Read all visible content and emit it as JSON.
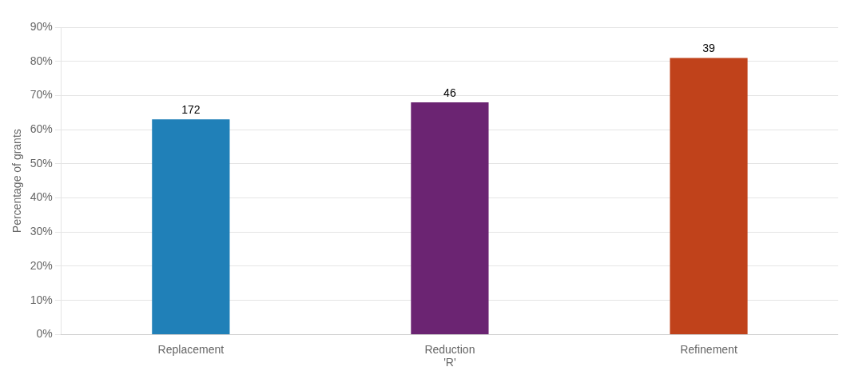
{
  "chart_data": {
    "type": "bar",
    "categories": [
      "Replacement",
      "Reduction\n'R'",
      "Refinement"
    ],
    "values": [
      0.63,
      0.68,
      0.81
    ],
    "colors": [
      "#2080b8",
      "#6b2472",
      "#c0421b"
    ],
    "annotations": [
      "172",
      "46",
      "39"
    ],
    "ylabel": "Percentage of grants",
    "ylim": [
      0,
      0.9
    ],
    "yticks": [
      {
        "value": 0.0,
        "label": "0%"
      },
      {
        "value": 0.1,
        "label": "10%"
      },
      {
        "value": 0.2,
        "label": "20%"
      },
      {
        "value": 0.3,
        "label": "30%"
      },
      {
        "value": 0.4,
        "label": "40%"
      },
      {
        "value": 0.5,
        "label": "50%"
      },
      {
        "value": 0.6,
        "label": "60%"
      },
      {
        "value": 0.7,
        "label": "70%"
      },
      {
        "value": 0.8,
        "label": "80%"
      },
      {
        "value": 0.9,
        "label": "90%"
      }
    ],
    "grid": true
  }
}
